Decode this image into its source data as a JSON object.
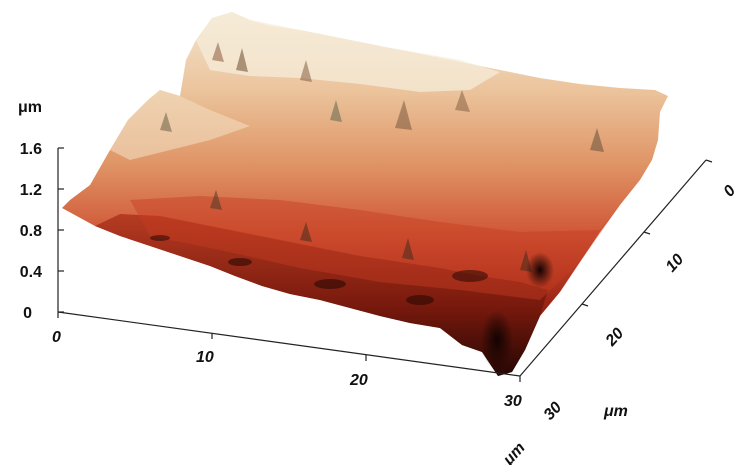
{
  "figure": {
    "z_axis": {
      "unit": "μm",
      "ticks": [
        "0",
        "0.4",
        "0.8",
        "1.2",
        "1.6"
      ]
    },
    "x_axis": {
      "unit": "μm",
      "ticks": [
        "0",
        "10",
        "20",
        "30"
      ]
    },
    "y_axis": {
      "unit": "μm",
      "ticks": [
        "0",
        "10",
        "20",
        "30"
      ]
    },
    "colors": {
      "highlight": "#f3e3c8",
      "tan": "#e7b48a",
      "orange": "#d9774a",
      "red": "#c43a22",
      "dark_red": "#7a1a0d",
      "shadow": "#2a0904"
    }
  }
}
